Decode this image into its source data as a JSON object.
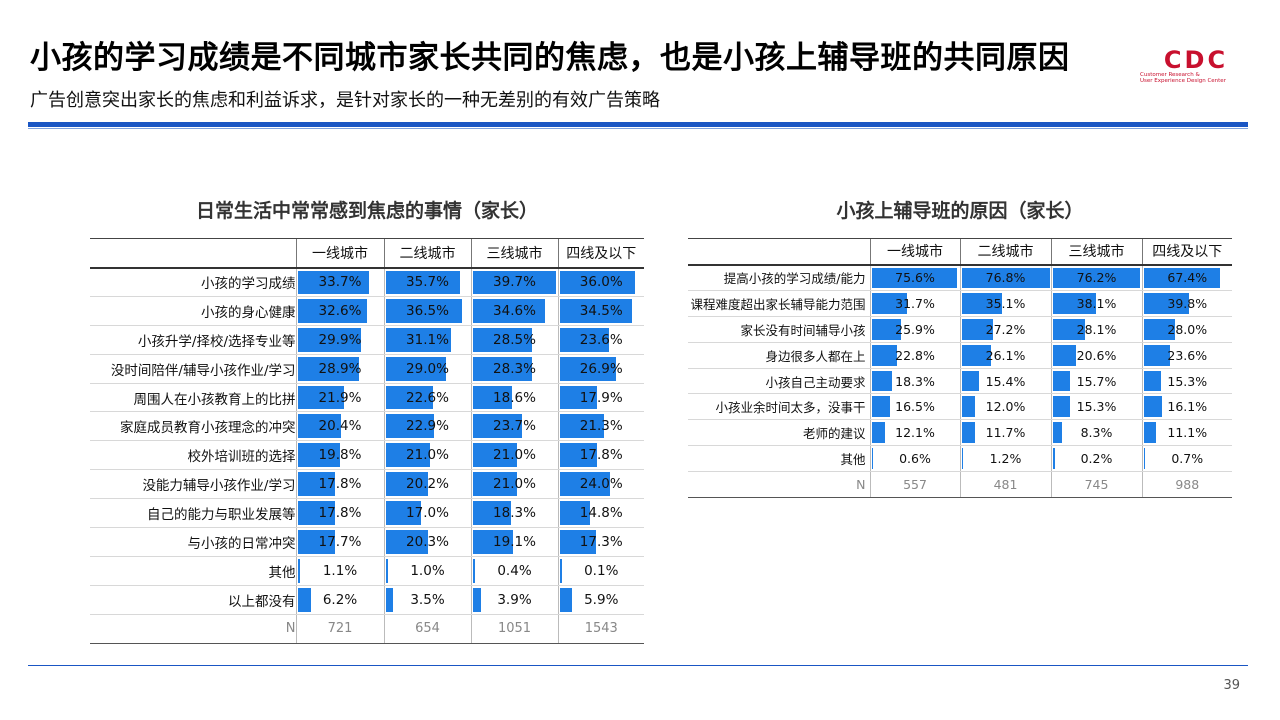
{
  "header": {
    "title": "小孩的学习成绩是不同城市家长共同的焦虑，也是小孩上辅导班的共同原因",
    "subtitle": "广告创意突出家长的焦虑和利益诉求，是针对家长的一种无差别的有效广告策略",
    "logo_text": "CDC",
    "logo_caption_1": "Customer Research &",
    "logo_caption_2": "User Experience Design Center"
  },
  "page_number": "39",
  "colors": {
    "accent": "#1a56c4",
    "bar": "#1e7fe6",
    "logo": "#c8102e"
  },
  "chart_data": [
    {
      "type": "table",
      "title": "日常生活中常常感到焦虑的事情（家长）",
      "columns": [
        "一线城市",
        "二线城市",
        "三线城市",
        "四线及以下"
      ],
      "rows": [
        {
          "label": "小孩的学习成绩",
          "values": [
            33.7,
            35.7,
            39.7,
            36.0
          ],
          "display": [
            "33.7%",
            "35.7%",
            "39.7%",
            "36.0%"
          ]
        },
        {
          "label": "小孩的身心健康",
          "values": [
            32.6,
            36.5,
            34.6,
            34.5
          ],
          "display": [
            "32.6%",
            "36.5%",
            "34.6%",
            "34.5%"
          ]
        },
        {
          "label": "小孩升学/择校/选择专业等",
          "values": [
            29.9,
            31.1,
            28.5,
            23.6
          ],
          "display": [
            "29.9%",
            "31.1%",
            "28.5%",
            "23.6%"
          ]
        },
        {
          "label": "没时间陪伴/辅导小孩作业/学习",
          "values": [
            28.9,
            29.0,
            28.3,
            26.9
          ],
          "display": [
            "28.9%",
            "29.0%",
            "28.3%",
            "26.9%"
          ]
        },
        {
          "label": "周围人在小孩教育上的比拼",
          "values": [
            21.9,
            22.6,
            18.6,
            17.9
          ],
          "display": [
            "21.9%",
            "22.6%",
            "18.6%",
            "17.9%"
          ]
        },
        {
          "label": "家庭成员教育小孩理念的冲突",
          "values": [
            20.4,
            22.9,
            23.7,
            21.3
          ],
          "display": [
            "20.4%",
            "22.9%",
            "23.7%",
            "21.3%"
          ]
        },
        {
          "label": "校外培训班的选择",
          "values": [
            19.8,
            21.0,
            21.0,
            17.8
          ],
          "display": [
            "19.8%",
            "21.0%",
            "21.0%",
            "17.8%"
          ]
        },
        {
          "label": "没能力辅导小孩作业/学习",
          "values": [
            17.8,
            20.2,
            21.0,
            24.0
          ],
          "display": [
            "17.8%",
            "20.2%",
            "21.0%",
            "24.0%"
          ]
        },
        {
          "label": "自己的能力与职业发展等",
          "values": [
            17.8,
            17.0,
            18.3,
            14.8
          ],
          "display": [
            "17.8%",
            "17.0%",
            "18.3%",
            "14.8%"
          ]
        },
        {
          "label": "与小孩的日常冲突",
          "values": [
            17.7,
            20.3,
            19.1,
            17.3
          ],
          "display": [
            "17.7%",
            "20.3%",
            "19.1%",
            "17.3%"
          ]
        },
        {
          "label": "其他",
          "values": [
            1.1,
            1.0,
            0.4,
            0.1
          ],
          "display": [
            "1.1%",
            "1.0%",
            "0.4%",
            "0.1%"
          ]
        },
        {
          "label": "以上都没有",
          "values": [
            6.2,
            3.5,
            3.9,
            5.9
          ],
          "display": [
            "6.2%",
            "3.5%",
            "3.9%",
            "5.9%"
          ]
        }
      ],
      "n_label": "N",
      "n_values": [
        "721",
        "654",
        "1051",
        "1543"
      ],
      "bar_max": 40
    },
    {
      "type": "table",
      "title": "小孩上辅导班的原因（家长）",
      "columns": [
        "一线城市",
        "二线城市",
        "三线城市",
        "四线及以下"
      ],
      "rows": [
        {
          "label": "提高小孩的学习成绩/能力",
          "values": [
            75.6,
            76.8,
            76.2,
            67.4
          ],
          "display": [
            "75.6%",
            "76.8%",
            "76.2%",
            "67.4%"
          ]
        },
        {
          "label": "课程难度超出家长辅导能力范围",
          "values": [
            31.7,
            35.1,
            38.1,
            39.8
          ],
          "display": [
            "31.7%",
            "35.1%",
            "38.1%",
            "39.8%"
          ]
        },
        {
          "label": "家长没有时间辅导小孩",
          "values": [
            25.9,
            27.2,
            28.1,
            28.0
          ],
          "display": [
            "25.9%",
            "27.2%",
            "28.1%",
            "28.0%"
          ]
        },
        {
          "label": "身边很多人都在上",
          "values": [
            22.8,
            26.1,
            20.6,
            23.6
          ],
          "display": [
            "22.8%",
            "26.1%",
            "20.6%",
            "23.6%"
          ]
        },
        {
          "label": "小孩自己主动要求",
          "values": [
            18.3,
            15.4,
            15.7,
            15.3
          ],
          "display": [
            "18.3%",
            "15.4%",
            "15.7%",
            "15.3%"
          ]
        },
        {
          "label": "小孩业余时间太多，没事干",
          "values": [
            16.5,
            12.0,
            15.3,
            16.1
          ],
          "display": [
            "16.5%",
            "12.0%",
            "15.3%",
            "16.1%"
          ]
        },
        {
          "label": "老师的建议",
          "values": [
            12.1,
            11.7,
            8.3,
            11.1
          ],
          "display": [
            "12.1%",
            "11.7%",
            "8.3%",
            "11.1%"
          ]
        },
        {
          "label": "其他",
          "values": [
            0.6,
            1.2,
            0.2,
            0.7
          ],
          "display": [
            "0.6%",
            "1.2%",
            "0.2%",
            "0.7%"
          ]
        }
      ],
      "n_label": "N",
      "n_values": [
        "557",
        "481",
        "745",
        "988"
      ],
      "bar_max": 76.8
    }
  ]
}
